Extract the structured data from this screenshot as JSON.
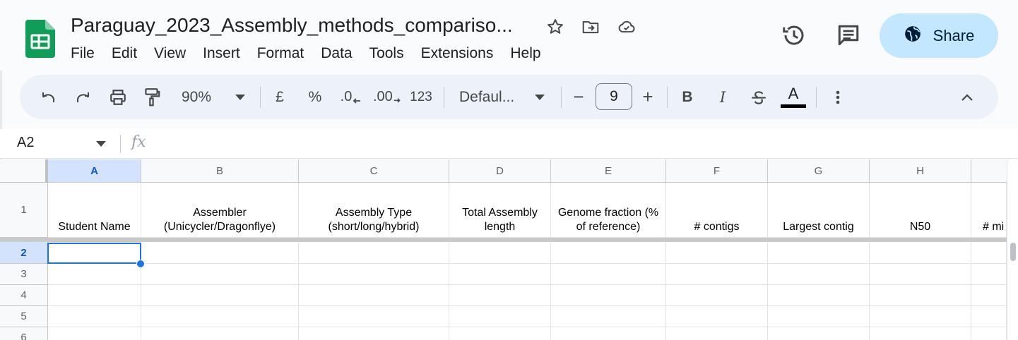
{
  "app": {
    "doc_title": "Paraguay_2023_Assembly_methods_compariso...",
    "menu": [
      "File",
      "Edit",
      "View",
      "Insert",
      "Format",
      "Data",
      "Tools",
      "Extensions",
      "Help"
    ],
    "share_label": "Share"
  },
  "toolbar": {
    "zoom": "90%",
    "currency": "£",
    "percent": "%",
    "decrease_decimal": ".0",
    "increase_decimal": ".00",
    "number_format": "123",
    "font": "Defaul...",
    "font_size": "9",
    "minus": "−",
    "plus": "+",
    "bold": "B",
    "italic": "I",
    "text_color": "A"
  },
  "formula_bar": {
    "name_box": "A2",
    "fx": "fx",
    "value": ""
  },
  "grid": {
    "columns": [
      "A",
      "B",
      "C",
      "D",
      "E",
      "F",
      "G",
      "H",
      ""
    ],
    "rows": [
      "1",
      "2",
      "3",
      "4",
      "5",
      "6"
    ],
    "selected_column": "A",
    "selected_row": "2",
    "header_cells": [
      "Student Name",
      "Assembler\n(Unicycler/Dragonflye)",
      "Assembly Type\n(short/long/hybrid)",
      "Total Assembly\nlength",
      "Genome fraction (%\nof reference)",
      "# contigs",
      "Largest contig",
      "N50",
      "# mi"
    ]
  },
  "colors": {
    "share_bg": "#c2e7ff",
    "toolbar_bg": "#edf2fa",
    "selection": "#1a73e8",
    "selected_header_bg": "#d3e3fd",
    "sheets_green": "#0f9d58"
  }
}
